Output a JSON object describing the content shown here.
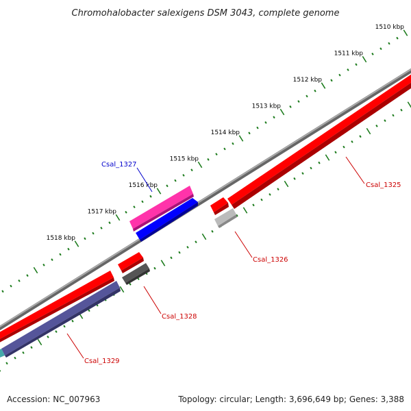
{
  "title": "Chromohalobacter salexigens DSM 3043, complete genome",
  "footer": {
    "accession": "Accession: NC_007963",
    "stats": "Topology: circular; Length: 3,696,649 bp; Genes: 3,388"
  },
  "ticks": [
    {
      "label": "1510 kbp",
      "kbp": 1510
    },
    {
      "label": "1511 kbp",
      "kbp": 1511
    },
    {
      "label": "1512 kbp",
      "kbp": 1512
    },
    {
      "label": "1513 kbp",
      "kbp": 1513
    },
    {
      "label": "1514 kbp",
      "kbp": 1514
    },
    {
      "label": "1515 kbp",
      "kbp": 1515
    },
    {
      "label": "1516 kbp",
      "kbp": 1516
    },
    {
      "label": "1517 kbp",
      "kbp": 1517
    },
    {
      "label": "1518 kbp",
      "kbp": 1518
    }
  ],
  "genes": [
    {
      "label": "Csal_1325",
      "color": "#cc0000",
      "fill": "#ff0000"
    },
    {
      "label": "Csal_1326",
      "color": "#cc0000",
      "fill": "#ff0000"
    },
    {
      "label": "Csal_1327",
      "color": "#0000cc",
      "fill": "#0000ff"
    },
    {
      "label": "Csal_1328",
      "color": "#cc0000",
      "fill": "#ff0000"
    },
    {
      "label": "Csal_1329",
      "color": "#cc0000",
      "fill": "#ff0000"
    }
  ],
  "colors": {
    "backbone": "#888888",
    "tick": "#1a7a1a",
    "rna_pink": "#ff33aa",
    "cds_gray": "#bbbbbb",
    "cds_darkgray": "#555555",
    "cds_purple": "#55559a"
  }
}
